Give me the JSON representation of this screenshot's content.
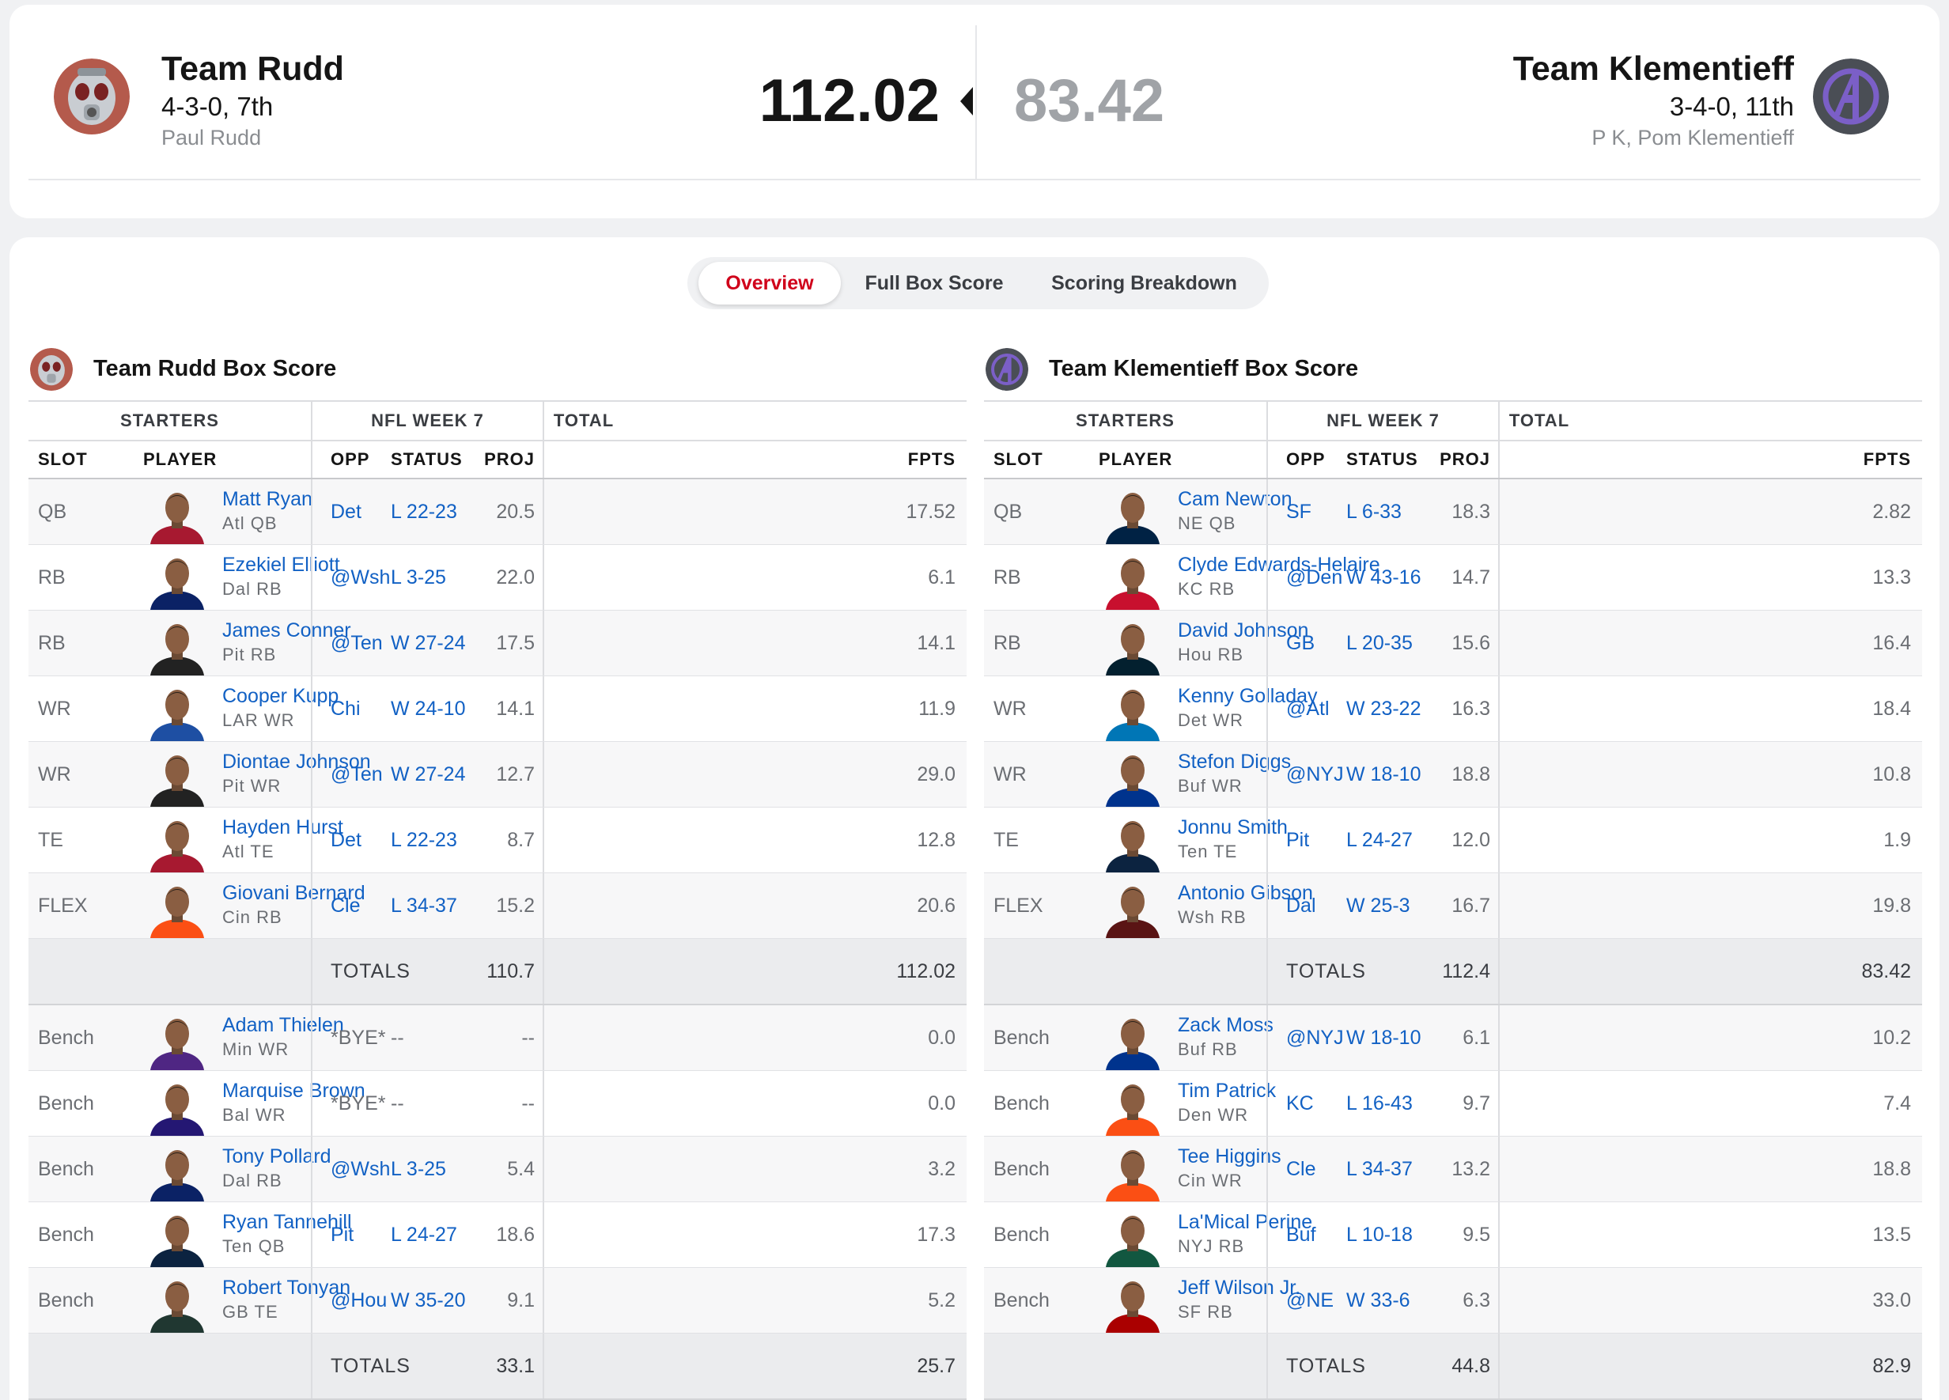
{
  "matchup": {
    "home": {
      "name": "Team Rudd",
      "record": "4-3-0, 7th",
      "owner": "Paul Rudd",
      "score": "112.02"
    },
    "away": {
      "name": "Team Klementieff",
      "record": "3-4-0, 11th",
      "owner": "P K, Pom Klementieff",
      "score": "83.42"
    }
  },
  "tabs": [
    {
      "label": "Overview",
      "active": true
    },
    {
      "label": "Full Box Score",
      "active": false
    },
    {
      "label": "Scoring Breakdown",
      "active": false
    }
  ],
  "headers": {
    "starters": "STARTERS",
    "week": "NFL WEEK 7",
    "total": "TOTAL",
    "slot": "SLOT",
    "player": "PLAYER",
    "opp": "OPP",
    "status": "STATUS",
    "proj": "PROJ",
    "fpts": "FPTS",
    "totals": "TOTALS"
  },
  "box_home": {
    "title": "Team Rudd Box Score",
    "starters": [
      {
        "slot": "QB",
        "name": "Matt Ryan",
        "team_pos": "Atl  QB",
        "opp": "Det",
        "status": "L 22-23",
        "proj": "20.5",
        "fpts": "17.52"
      },
      {
        "slot": "RB",
        "name": "Ezekiel Elliott",
        "team_pos": "Dal  RB",
        "opp": "@Wsh",
        "status": "L 3-25",
        "proj": "22.0",
        "fpts": "6.1"
      },
      {
        "slot": "RB",
        "name": "James Conner",
        "team_pos": "Pit  RB",
        "opp": "@Ten",
        "status": "W 27-24",
        "proj": "17.5",
        "fpts": "14.1"
      },
      {
        "slot": "WR",
        "name": "Cooper Kupp",
        "team_pos": "LAR  WR",
        "opp": "Chi",
        "status": "W 24-10",
        "proj": "14.1",
        "fpts": "11.9"
      },
      {
        "slot": "WR",
        "name": "Diontae Johnson",
        "team_pos": "Pit  WR",
        "opp": "@Ten",
        "status": "W 27-24",
        "proj": "12.7",
        "fpts": "29.0"
      },
      {
        "slot": "TE",
        "name": "Hayden Hurst",
        "team_pos": "Atl  TE",
        "opp": "Det",
        "status": "L 22-23",
        "proj": "8.7",
        "fpts": "12.8"
      },
      {
        "slot": "FLEX",
        "name": "Giovani Bernard",
        "team_pos": "Cin  RB",
        "opp": "Cle",
        "status": "L 34-37",
        "proj": "15.2",
        "fpts": "20.6"
      }
    ],
    "starters_totals": {
      "proj": "110.7",
      "fpts": "112.02"
    },
    "bench": [
      {
        "slot": "Bench",
        "name": "Adam Thielen",
        "team_pos": "Min  WR",
        "opp": "*BYE*",
        "status": "--",
        "proj": "--",
        "fpts": "0.0"
      },
      {
        "slot": "Bench",
        "name": "Marquise Brown",
        "team_pos": "Bal  WR",
        "opp": "*BYE*",
        "status": "--",
        "proj": "--",
        "fpts": "0.0"
      },
      {
        "slot": "Bench",
        "name": "Tony Pollard",
        "team_pos": "Dal  RB",
        "opp": "@Wsh",
        "status": "L 3-25",
        "proj": "5.4",
        "fpts": "3.2"
      },
      {
        "slot": "Bench",
        "name": "Ryan Tannehill",
        "team_pos": "Ten  QB",
        "opp": "Pit",
        "status": "L 24-27",
        "proj": "18.6",
        "fpts": "17.3"
      },
      {
        "slot": "Bench",
        "name": "Robert Tonyan",
        "team_pos": "GB  TE",
        "opp": "@Hou",
        "status": "W 35-20",
        "proj": "9.1",
        "fpts": "5.2"
      }
    ],
    "bench_totals": {
      "proj": "33.1",
      "fpts": "25.7"
    }
  },
  "box_away": {
    "title": "Team Klementieff Box Score",
    "starters": [
      {
        "slot": "QB",
        "name": "Cam Newton",
        "team_pos": "NE  QB",
        "opp": "SF",
        "status": "L 6-33",
        "proj": "18.3",
        "fpts": "2.82"
      },
      {
        "slot": "RB",
        "name": "Clyde Edwards-Helaire",
        "team_pos": "KC  RB",
        "opp": "@Den",
        "status": "W 43-16",
        "proj": "14.7",
        "fpts": "13.3"
      },
      {
        "slot": "RB",
        "name": "David Johnson",
        "team_pos": "Hou  RB",
        "opp": "GB",
        "status": "L 20-35",
        "proj": "15.6",
        "fpts": "16.4"
      },
      {
        "slot": "WR",
        "name": "Kenny Golladay",
        "team_pos": "Det  WR",
        "opp": "@Atl",
        "status": "W 23-22",
        "proj": "16.3",
        "fpts": "18.4"
      },
      {
        "slot": "WR",
        "name": "Stefon Diggs",
        "team_pos": "Buf  WR",
        "opp": "@NYJ",
        "status": "W 18-10",
        "proj": "18.8",
        "fpts": "10.8"
      },
      {
        "slot": "TE",
        "name": "Jonnu Smith",
        "team_pos": "Ten  TE",
        "opp": "Pit",
        "status": "L 24-27",
        "proj": "12.0",
        "fpts": "1.9"
      },
      {
        "slot": "FLEX",
        "name": "Antonio Gibson",
        "team_pos": "Wsh  RB",
        "opp": "Dal",
        "status": "W 25-3",
        "proj": "16.7",
        "fpts": "19.8"
      }
    ],
    "starters_totals": {
      "proj": "112.4",
      "fpts": "83.42"
    },
    "bench": [
      {
        "slot": "Bench",
        "name": "Zack Moss",
        "team_pos": "Buf  RB",
        "opp": "@NYJ",
        "status": "W 18-10",
        "proj": "6.1",
        "fpts": "10.2"
      },
      {
        "slot": "Bench",
        "name": "Tim Patrick",
        "team_pos": "Den  WR",
        "opp": "KC",
        "status": "L 16-43",
        "proj": "9.7",
        "fpts": "7.4"
      },
      {
        "slot": "Bench",
        "name": "Tee Higgins",
        "team_pos": "Cin  WR",
        "opp": "Cle",
        "status": "L 34-37",
        "proj": "13.2",
        "fpts": "18.8"
      },
      {
        "slot": "Bench",
        "name": "La'Mical Perine",
        "team_pos": "NYJ  RB",
        "opp": "Buf",
        "status": "L 10-18",
        "proj": "9.5",
        "fpts": "13.5"
      },
      {
        "slot": "Bench",
        "name": "Jeff Wilson Jr.",
        "team_pos": "SF  RB",
        "opp": "@NE",
        "status": "W 33-6",
        "proj": "6.3",
        "fpts": "33.0"
      }
    ],
    "bench_totals": {
      "proj": "44.8",
      "fpts": "82.9"
    }
  },
  "colors": {
    "link": "#1261c4",
    "active_tab": "#d0001a",
    "loser_score": "#a0a3a7",
    "total_row": "#ebecee"
  },
  "icons": {
    "home_logo": "ant-man-helmet-icon",
    "away_logo": "avengers-logo-icon",
    "winner_marker": "caret-left-icon",
    "player_headshot": "player-headshot-icon"
  }
}
